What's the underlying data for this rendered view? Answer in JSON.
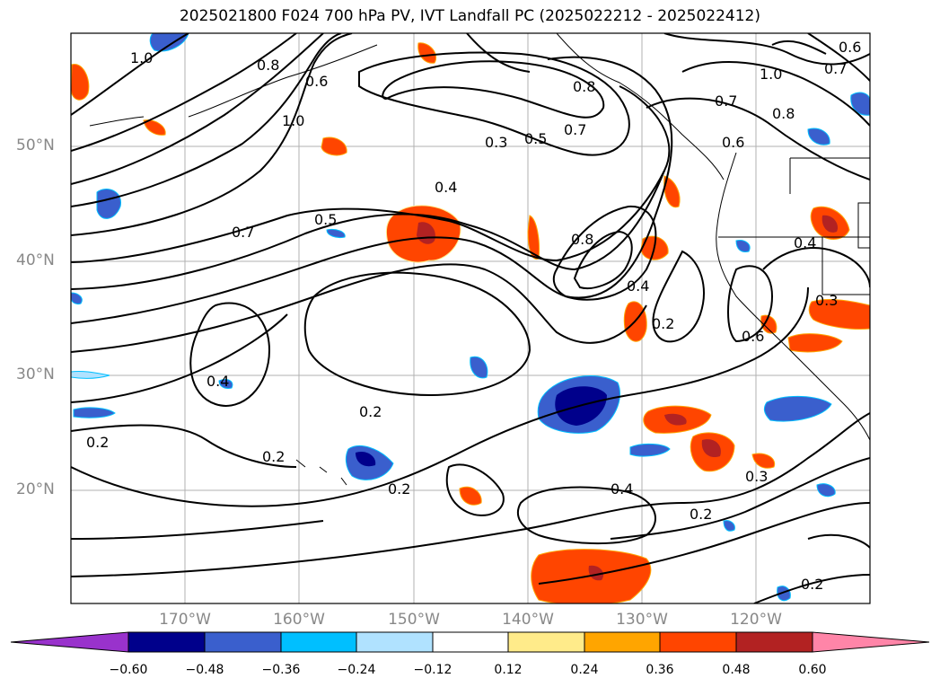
{
  "title": "2025021800 F024 700 hPa PV, IVT Landfall PC (2025022212 - 2025022412)",
  "lat_labels": [
    "50°N",
    "40°N",
    "30°N",
    "20°N"
  ],
  "lon_labels": [
    "170°W",
    "160°W",
    "150°W",
    "140°W",
    "130°W",
    "120°W"
  ],
  "colorbar": {
    "colors": [
      "#9932cc",
      "#00008b",
      "#3a5fcd",
      "#00bfff",
      "#b0e2ff",
      "#ffffff",
      "#ffeb8a",
      "#ffa500",
      "#ff4500",
      "#b22222",
      "#ff85a8"
    ],
    "tick_labels": [
      "−0.60",
      "−0.48",
      "−0.36",
      "−0.24",
      "−0.12",
      "0.12",
      "0.24",
      "0.36",
      "0.48",
      "0.60"
    ]
  },
  "contour_labels": [
    {
      "text": "1.0"
    },
    {
      "text": "0.8"
    },
    {
      "text": "0.6"
    },
    {
      "text": "1.0"
    },
    {
      "text": "0.3"
    },
    {
      "text": "0.5"
    },
    {
      "text": "0.7"
    },
    {
      "text": "0.8"
    },
    {
      "text": "0.7"
    },
    {
      "text": "0.6"
    },
    {
      "text": "1.0"
    },
    {
      "text": "0.8"
    },
    {
      "text": "0.7"
    },
    {
      "text": "0.6"
    },
    {
      "text": "0.4"
    },
    {
      "text": "0.5"
    },
    {
      "text": "0.7"
    },
    {
      "text": "0.8"
    },
    {
      "text": "0.4"
    },
    {
      "text": "0.2"
    },
    {
      "text": "0.6"
    },
    {
      "text": "0.4"
    },
    {
      "text": "0.3"
    },
    {
      "text": "0.4"
    },
    {
      "text": "0.2"
    },
    {
      "text": "0.2"
    },
    {
      "text": "0.2"
    },
    {
      "text": "0.2"
    },
    {
      "text": "0.4"
    },
    {
      "text": "0.2"
    },
    {
      "text": "0.3"
    },
    {
      "text": "0.2"
    }
  ]
}
